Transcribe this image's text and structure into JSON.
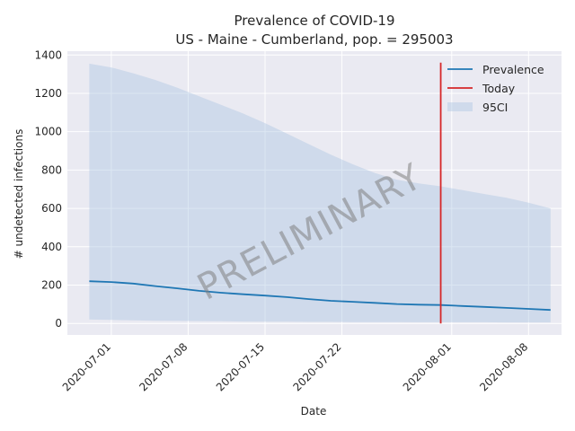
{
  "chart_data": {
    "type": "line",
    "title": "Prevalence of COVID-19",
    "subtitle": "US - Maine - Cumberland, pop. = 295003",
    "xlabel": "Date",
    "ylabel": "# undetected infections",
    "ylim": [
      -60,
      1420
    ],
    "yticks": [
      0,
      200,
      400,
      600,
      800,
      1000,
      1200,
      1400
    ],
    "xlim": [
      "2020-06-27",
      "2020-08-11"
    ],
    "xticks": [
      "2020-07-01",
      "2020-07-08",
      "2020-07-15",
      "2020-07-22",
      "2020-08-01",
      "2020-08-08"
    ],
    "grid": true,
    "legend_position": "top-right",
    "watermark": "PRELIMINARY",
    "today": "2020-07-31",
    "today_range": [
      0,
      1360
    ],
    "series": [
      {
        "name": "Prevalence",
        "color": "#1f77b4",
        "dates": [
          "2020-06-29",
          "2020-07-01",
          "2020-07-03",
          "2020-07-05",
          "2020-07-07",
          "2020-07-09",
          "2020-07-11",
          "2020-07-13",
          "2020-07-15",
          "2020-07-17",
          "2020-07-19",
          "2020-07-21",
          "2020-07-23",
          "2020-07-25",
          "2020-07-27",
          "2020-07-29",
          "2020-07-31",
          "2020-08-02",
          "2020-08-04",
          "2020-08-06",
          "2020-08-08",
          "2020-08-10"
        ],
        "values": [
          220,
          216,
          208,
          195,
          183,
          170,
          160,
          152,
          145,
          137,
          127,
          118,
          113,
          107,
          101,
          98,
          96,
          91,
          86,
          81,
          76,
          70
        ]
      },
      {
        "name": "Today",
        "color": "#d62728"
      },
      {
        "name": "95CI",
        "color": "#b0c8e2",
        "dates": [
          "2020-06-29",
          "2020-07-01",
          "2020-07-03",
          "2020-07-05",
          "2020-07-07",
          "2020-07-09",
          "2020-07-11",
          "2020-07-13",
          "2020-07-15",
          "2020-07-17",
          "2020-07-19",
          "2020-07-21",
          "2020-07-23",
          "2020-07-25",
          "2020-07-27",
          "2020-07-29",
          "2020-07-31",
          "2020-08-02",
          "2020-08-04",
          "2020-08-06",
          "2020-08-08",
          "2020-08-10"
        ],
        "upper": [
          1355,
          1335,
          1305,
          1270,
          1230,
          1185,
          1140,
          1095,
          1045,
          990,
          935,
          880,
          830,
          785,
          750,
          730,
          715,
          695,
          675,
          655,
          630,
          600
        ],
        "lower": [
          20,
          18,
          16,
          14,
          13,
          12,
          11,
          10,
          9,
          9,
          8,
          8,
          7,
          7,
          7,
          6,
          6,
          6,
          6,
          5,
          5,
          5
        ]
      }
    ]
  }
}
